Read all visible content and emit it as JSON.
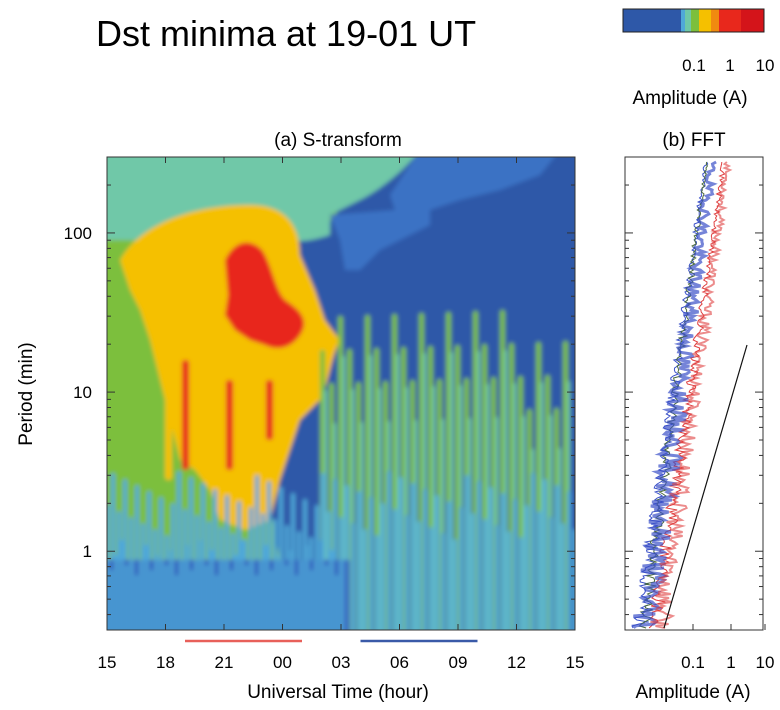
{
  "figure": {
    "title": "Dst minima at 19-01 UT"
  },
  "colorbar": {
    "label": "Amplitude (A)",
    "tick_labels": [
      "0.1",
      "1",
      "10"
    ],
    "colors": [
      "#2e58a8",
      "#3a72c4",
      "#4fa8d8",
      "#6fc8a8",
      "#7cbf3c",
      "#f5c000",
      "#f08a10",
      "#e8281c",
      "#d4141a"
    ]
  },
  "chart_data": [
    {
      "type": "heatmap",
      "title": "(a) S-transform",
      "xlabel": "Universal Time (hour)",
      "ylabel": "Period (min)",
      "x_tick_labels": [
        "15",
        "18",
        "21",
        "00",
        "03",
        "06",
        "09",
        "12",
        "15"
      ],
      "y_tick_labels": [
        "1",
        "10",
        "100"
      ],
      "xlim_hours": [
        15,
        39
      ],
      "ylim_min": [
        0.32,
        300
      ],
      "yscale": "log",
      "markers": [
        {
          "from": "19",
          "to": "01",
          "color": "#e8605a"
        },
        {
          "from": "04",
          "to": "10",
          "color": "#3a5aa8"
        }
      ]
    },
    {
      "type": "line",
      "title": "(b) FFT",
      "xlabel": "Amplitude (A)",
      "x_tick_labels": [
        "0.1",
        "1",
        "10"
      ],
      "xscale": "log",
      "yscale": "log",
      "series_colors": [
        "#3a50c8",
        "#4a6a3a",
        "#e04040",
        "#111111"
      ]
    }
  ]
}
